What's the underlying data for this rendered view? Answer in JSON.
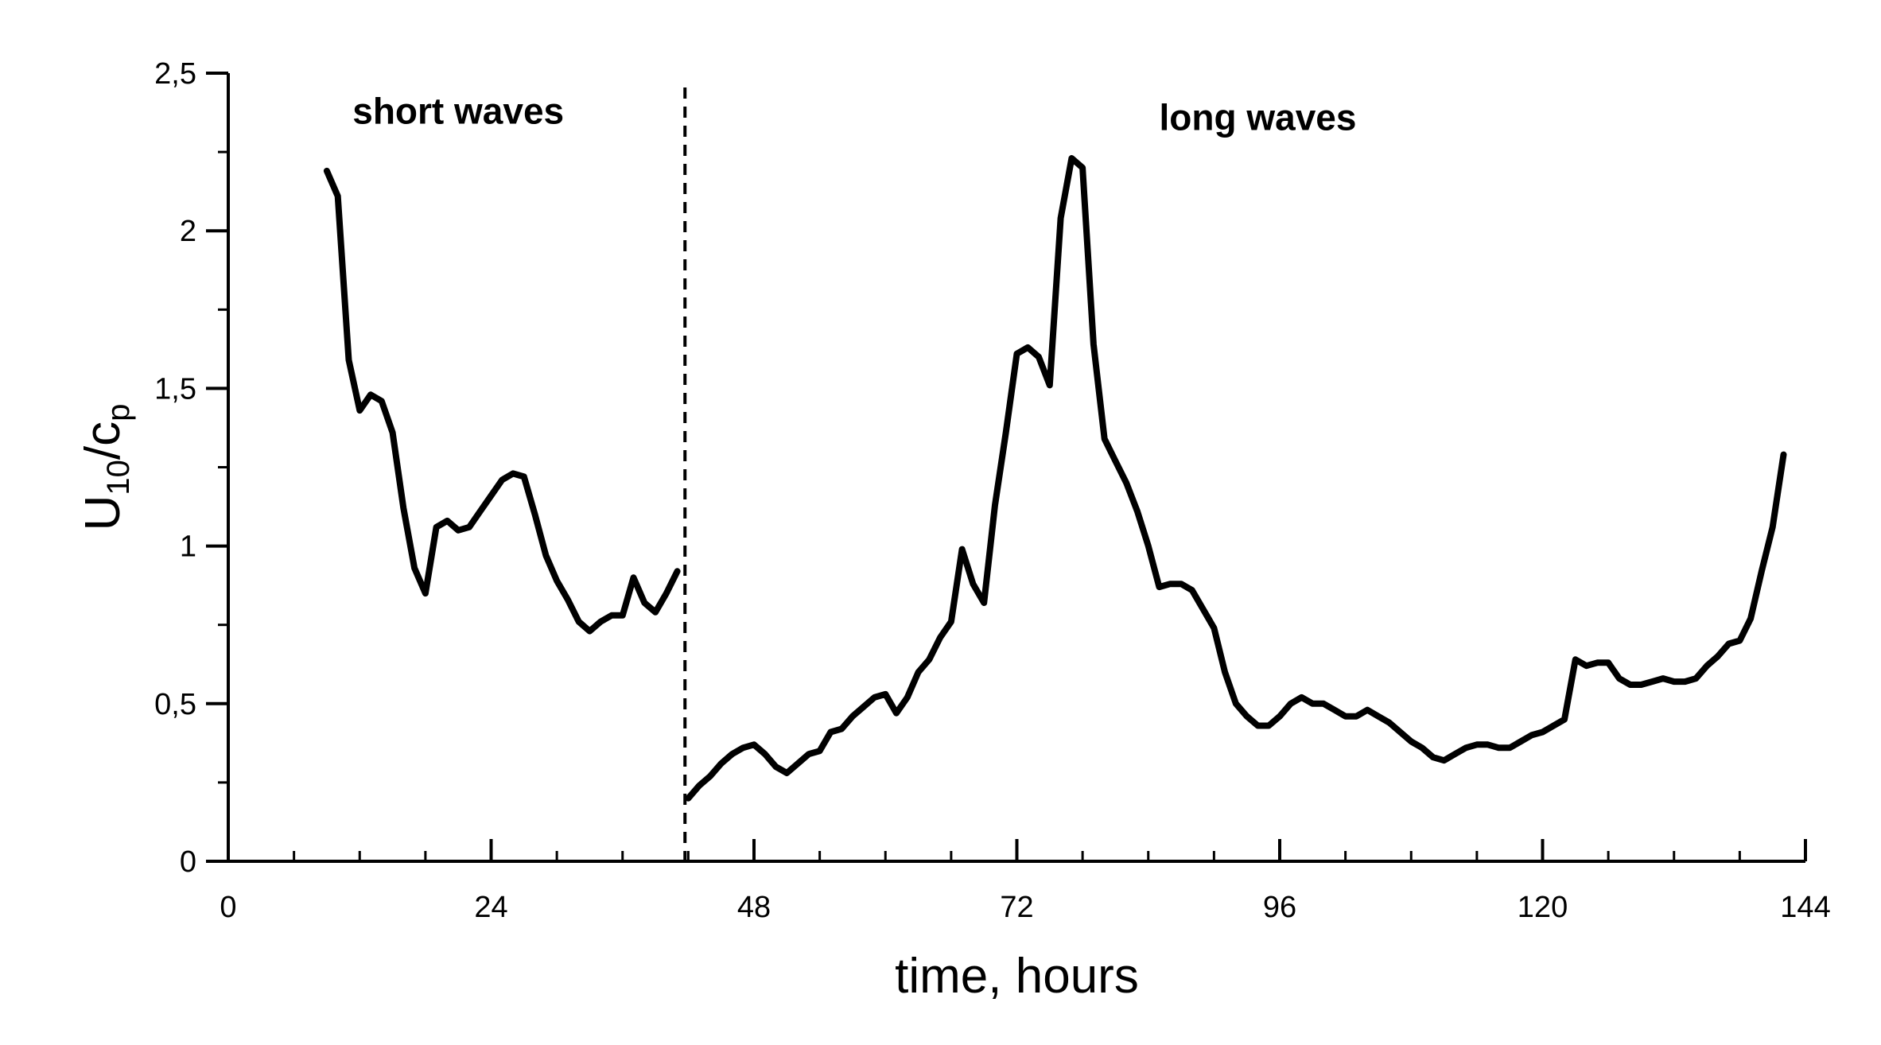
{
  "chart_data": {
    "type": "line",
    "xlabel": "time, hours",
    "ylabel": {
      "base": "U",
      "sub1": "10",
      "mid": "/c",
      "sub2": "p"
    },
    "xlim": [
      0,
      144
    ],
    "ylim": [
      0,
      2.5
    ],
    "x_ticks": [
      0,
      24,
      48,
      72,
      96,
      120,
      144
    ],
    "x_tick_labels": [
      "0",
      "24",
      "48",
      "72",
      "96",
      "120",
      "144"
    ],
    "x_minor_step": 6,
    "y_ticks": [
      0,
      0.5,
      1,
      1.5,
      2,
      2.5
    ],
    "y_tick_labels": [
      "0",
      "0,5",
      "1",
      "1,5",
      "2",
      "2,5"
    ],
    "y_minor_step": 0.25,
    "grid": false,
    "divider_x": 41.7,
    "annotations": [
      {
        "text": "short waves",
        "x": 21,
        "y": 2.38
      },
      {
        "text": "long waves",
        "x": 94,
        "y": 2.36
      }
    ],
    "series": [
      {
        "segment": "short",
        "points": [
          [
            9,
            2.19
          ],
          [
            10,
            2.11
          ],
          [
            11,
            1.59
          ],
          [
            12,
            1.43
          ],
          [
            13,
            1.48
          ],
          [
            14,
            1.46
          ],
          [
            15,
            1.36
          ],
          [
            16,
            1.12
          ],
          [
            17,
            0.93
          ],
          [
            18,
            0.85
          ],
          [
            19,
            1.06
          ],
          [
            20,
            1.08
          ],
          [
            21,
            1.05
          ],
          [
            22,
            1.06
          ],
          [
            23,
            1.11
          ],
          [
            24,
            1.16
          ],
          [
            25,
            1.21
          ],
          [
            26,
            1.23
          ],
          [
            27,
            1.22
          ],
          [
            28,
            1.1
          ],
          [
            29,
            0.97
          ],
          [
            30,
            0.89
          ],
          [
            31,
            0.83
          ],
          [
            32,
            0.76
          ],
          [
            33,
            0.73
          ],
          [
            34,
            0.76
          ],
          [
            35,
            0.78
          ],
          [
            36,
            0.78
          ],
          [
            37,
            0.9
          ],
          [
            38,
            0.82
          ],
          [
            39,
            0.79
          ],
          [
            40,
            0.85
          ],
          [
            41,
            0.92
          ]
        ]
      },
      {
        "segment": "long",
        "points": [
          [
            42,
            0.2
          ],
          [
            43,
            0.24
          ],
          [
            44,
            0.27
          ],
          [
            45,
            0.31
          ],
          [
            46,
            0.34
          ],
          [
            47,
            0.36
          ],
          [
            48,
            0.37
          ],
          [
            49,
            0.34
          ],
          [
            50,
            0.3
          ],
          [
            51,
            0.28
          ],
          [
            52,
            0.31
          ],
          [
            53,
            0.34
          ],
          [
            54,
            0.35
          ],
          [
            55,
            0.41
          ],
          [
            56,
            0.42
          ],
          [
            57,
            0.46
          ],
          [
            58,
            0.49
          ],
          [
            59,
            0.52
          ],
          [
            60,
            0.53
          ],
          [
            61,
            0.47
          ],
          [
            62,
            0.52
          ],
          [
            63,
            0.6
          ],
          [
            64,
            0.64
          ],
          [
            65,
            0.71
          ],
          [
            66,
            0.76
          ],
          [
            67,
            0.99
          ],
          [
            68,
            0.88
          ],
          [
            69,
            0.82
          ],
          [
            70,
            1.13
          ],
          [
            71,
            1.36
          ],
          [
            72,
            1.61
          ],
          [
            73,
            1.63
          ],
          [
            74,
            1.6
          ],
          [
            75,
            1.51
          ],
          [
            76,
            2.04
          ],
          [
            77,
            2.23
          ],
          [
            78,
            2.2
          ],
          [
            79,
            1.64
          ],
          [
            80,
            1.34
          ],
          [
            81,
            1.27
          ],
          [
            82,
            1.2
          ],
          [
            83,
            1.11
          ],
          [
            84,
            1.0
          ],
          [
            85,
            0.87
          ],
          [
            86,
            0.88
          ],
          [
            87,
            0.88
          ],
          [
            88,
            0.86
          ],
          [
            89,
            0.8
          ],
          [
            90,
            0.74
          ],
          [
            91,
            0.6
          ],
          [
            92,
            0.5
          ],
          [
            93,
            0.46
          ],
          [
            94,
            0.43
          ],
          [
            95,
            0.43
          ],
          [
            96,
            0.46
          ],
          [
            97,
            0.5
          ],
          [
            98,
            0.52
          ],
          [
            99,
            0.5
          ],
          [
            100,
            0.5
          ],
          [
            101,
            0.48
          ],
          [
            102,
            0.46
          ],
          [
            103,
            0.46
          ],
          [
            104,
            0.48
          ],
          [
            105,
            0.46
          ],
          [
            106,
            0.44
          ],
          [
            107,
            0.41
          ],
          [
            108,
            0.38
          ],
          [
            109,
            0.36
          ],
          [
            110,
            0.33
          ],
          [
            111,
            0.32
          ],
          [
            112,
            0.34
          ],
          [
            113,
            0.36
          ],
          [
            114,
            0.37
          ],
          [
            115,
            0.37
          ],
          [
            116,
            0.36
          ],
          [
            117,
            0.36
          ],
          [
            118,
            0.38
          ],
          [
            119,
            0.4
          ],
          [
            120,
            0.41
          ],
          [
            121,
            0.43
          ],
          [
            122,
            0.45
          ],
          [
            123,
            0.64
          ],
          [
            124,
            0.62
          ],
          [
            125,
            0.63
          ],
          [
            126,
            0.63
          ],
          [
            127,
            0.58
          ],
          [
            128,
            0.56
          ],
          [
            129,
            0.56
          ],
          [
            130,
            0.57
          ],
          [
            131,
            0.58
          ],
          [
            132,
            0.57
          ],
          [
            133,
            0.57
          ],
          [
            134,
            0.58
          ],
          [
            135,
            0.62
          ],
          [
            136,
            0.65
          ],
          [
            137,
            0.69
          ],
          [
            138,
            0.7
          ],
          [
            139,
            0.77
          ],
          [
            140,
            0.92
          ],
          [
            141,
            1.06
          ],
          [
            142,
            1.29
          ]
        ]
      }
    ]
  }
}
